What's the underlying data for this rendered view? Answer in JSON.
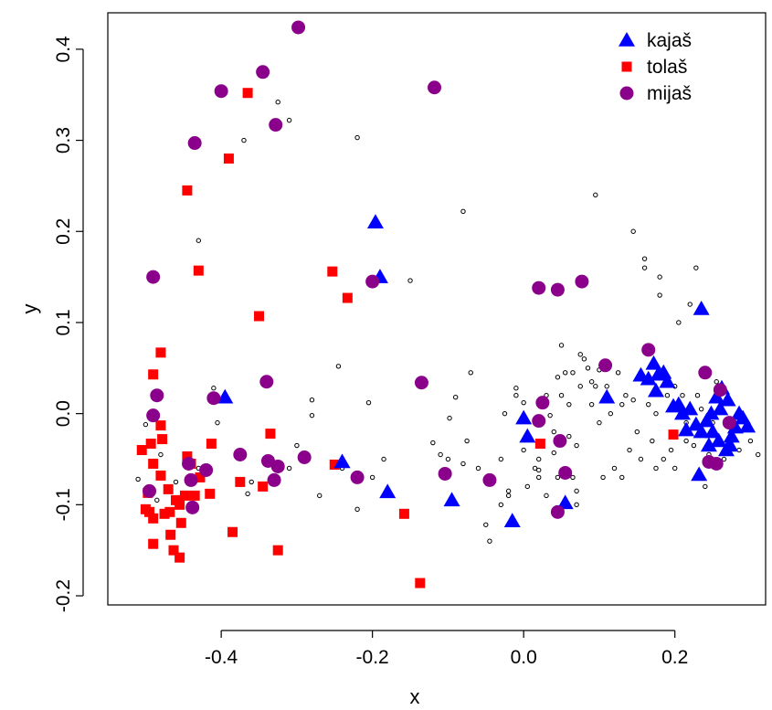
{
  "chart_data": {
    "type": "scatter",
    "xlabel": "x",
    "ylabel": "y",
    "xlim": [
      -0.55,
      0.32
    ],
    "ylim": [
      -0.21,
      0.44
    ],
    "x_ticks": [
      -0.4,
      -0.2,
      0.0,
      0.2
    ],
    "x_tick_labels": [
      "-0.4",
      "-0.2",
      "0.0",
      "0.2"
    ],
    "y_ticks": [
      -0.2,
      -0.1,
      0.0,
      0.1,
      0.2,
      0.3,
      0.4
    ],
    "y_tick_labels": [
      "-0.2",
      "-0.1",
      "0.0",
      "0.1",
      "0.2",
      "0.3",
      "0.4"
    ],
    "grid": false,
    "legend_position": "top-right",
    "legend": [
      {
        "label": "kajaš",
        "marker": "triangle",
        "color": "#0000ff"
      },
      {
        "label": "tolaš",
        "marker": "square",
        "color": "#ff0000"
      },
      {
        "label": "mijaš",
        "marker": "circle-filled",
        "color": "#8b008b"
      }
    ],
    "series": [
      {
        "name": "kajaš",
        "marker": "triangle",
        "color": "#0000ff",
        "points": [
          [
            -0.196,
            0.21
          ],
          [
            -0.19,
            0.15
          ],
          [
            -0.395,
            0.018
          ],
          [
            -0.24,
            -0.053
          ],
          [
            -0.18,
            -0.086
          ],
          [
            -0.095,
            -0.095
          ],
          [
            -0.015,
            -0.118
          ],
          [
            0.0,
            -0.005
          ],
          [
            0.005,
            -0.025
          ],
          [
            0.055,
            -0.098
          ],
          [
            0.11,
            0.018
          ],
          [
            0.235,
            0.115
          ],
          [
            0.155,
            0.042
          ],
          [
            0.165,
            0.038
          ],
          [
            0.172,
            0.055
          ],
          [
            0.178,
            0.043
          ],
          [
            0.185,
            0.045
          ],
          [
            0.19,
            0.035
          ],
          [
            0.175,
            0.025
          ],
          [
            0.198,
            0.008
          ],
          [
            0.21,
            0.0
          ],
          [
            0.22,
            0.005
          ],
          [
            0.228,
            -0.012
          ],
          [
            0.235,
            -0.02
          ],
          [
            0.242,
            -0.008
          ],
          [
            0.25,
            -0.02
          ],
          [
            0.255,
            0.018
          ],
          [
            0.262,
            0.028
          ],
          [
            0.27,
            0.015
          ],
          [
            0.275,
            -0.025
          ],
          [
            0.28,
            -0.015
          ],
          [
            0.285,
            0.0
          ],
          [
            0.29,
            -0.005
          ],
          [
            0.296,
            -0.014
          ],
          [
            0.232,
            -0.067
          ],
          [
            0.245,
            -0.035
          ],
          [
            0.258,
            -0.03
          ],
          [
            0.268,
            -0.04
          ],
          [
            0.273,
            -0.035
          ],
          [
            0.215,
            -0.018
          ],
          [
            0.205,
            0.01
          ],
          [
            0.26,
            0.005
          ],
          [
            0.248,
            0.0
          ]
        ]
      },
      {
        "name": "tolaš",
        "marker": "square",
        "color": "#ff0000",
        "points": [
          [
            -0.365,
            0.352
          ],
          [
            -0.39,
            0.28
          ],
          [
            -0.445,
            0.245
          ],
          [
            -0.43,
            0.157
          ],
          [
            -0.35,
            0.107
          ],
          [
            -0.253,
            0.156
          ],
          [
            -0.233,
            0.127
          ],
          [
            -0.48,
            0.067
          ],
          [
            -0.49,
            0.043
          ],
          [
            -0.48,
            -0.013
          ],
          [
            -0.478,
            -0.028
          ],
          [
            -0.493,
            -0.033
          ],
          [
            -0.505,
            -0.04
          ],
          [
            -0.49,
            -0.055
          ],
          [
            -0.48,
            -0.068
          ],
          [
            -0.47,
            -0.083
          ],
          [
            -0.497,
            -0.087
          ],
          [
            -0.5,
            -0.105
          ],
          [
            -0.495,
            -0.108
          ],
          [
            -0.49,
            -0.115
          ],
          [
            -0.475,
            -0.11
          ],
          [
            -0.468,
            -0.108
          ],
          [
            -0.46,
            -0.095
          ],
          [
            -0.455,
            -0.1
          ],
          [
            -0.448,
            -0.09
          ],
          [
            -0.435,
            -0.09
          ],
          [
            -0.44,
            -0.055
          ],
          [
            -0.445,
            -0.047
          ],
          [
            -0.413,
            -0.033
          ],
          [
            -0.428,
            -0.07
          ],
          [
            -0.415,
            -0.088
          ],
          [
            -0.453,
            -0.12
          ],
          [
            -0.467,
            -0.133
          ],
          [
            -0.463,
            -0.15
          ],
          [
            -0.455,
            -0.158
          ],
          [
            -0.49,
            -0.143
          ],
          [
            -0.385,
            -0.13
          ],
          [
            -0.375,
            -0.075
          ],
          [
            -0.345,
            -0.08
          ],
          [
            -0.335,
            -0.022
          ],
          [
            -0.325,
            -0.15
          ],
          [
            -0.25,
            -0.056
          ],
          [
            -0.158,
            -0.11
          ],
          [
            -0.137,
            -0.186
          ],
          [
            0.022,
            -0.033
          ],
          [
            0.198,
            -0.023
          ]
        ]
      },
      {
        "name": "mijaš",
        "marker": "circle-filled",
        "color": "#8b008b",
        "points": [
          [
            -0.298,
            0.424
          ],
          [
            -0.345,
            0.375
          ],
          [
            -0.4,
            0.354
          ],
          [
            -0.435,
            0.297
          ],
          [
            -0.328,
            0.317
          ],
          [
            -0.118,
            0.358
          ],
          [
            -0.49,
            0.15
          ],
          [
            -0.2,
            0.145
          ],
          [
            -0.485,
            0.02
          ],
          [
            -0.49,
            -0.002
          ],
          [
            -0.41,
            0.017
          ],
          [
            -0.34,
            0.035
          ],
          [
            -0.135,
            0.034
          ],
          [
            -0.443,
            -0.055
          ],
          [
            -0.375,
            -0.045
          ],
          [
            -0.338,
            -0.052
          ],
          [
            -0.325,
            -0.058
          ],
          [
            -0.29,
            -0.048
          ],
          [
            -0.22,
            -0.07
          ],
          [
            -0.42,
            -0.062
          ],
          [
            -0.44,
            -0.073
          ],
          [
            -0.33,
            -0.073
          ],
          [
            -0.495,
            -0.085
          ],
          [
            -0.438,
            -0.103
          ],
          [
            -0.104,
            -0.066
          ],
          [
            -0.045,
            -0.073
          ],
          [
            0.02,
            0.138
          ],
          [
            0.045,
            0.136
          ],
          [
            0.077,
            0.145
          ],
          [
            0.108,
            0.053
          ],
          [
            0.165,
            0.07
          ],
          [
            0.24,
            0.045
          ],
          [
            0.02,
            -0.008
          ],
          [
            0.025,
            0.012
          ],
          [
            0.048,
            -0.03
          ],
          [
            0.055,
            -0.065
          ],
          [
            0.045,
            -0.108
          ],
          [
            0.26,
            0.026
          ],
          [
            0.272,
            -0.01
          ],
          [
            0.245,
            -0.053
          ],
          [
            0.255,
            -0.055
          ]
        ]
      },
      {
        "name": "",
        "marker": "circle-open",
        "color": "#000000",
        "points": [
          [
            -0.31,
            0.322
          ],
          [
            -0.325,
            0.342
          ],
          [
            -0.22,
            0.303
          ],
          [
            -0.37,
            0.3
          ],
          [
            -0.43,
            0.19
          ],
          [
            -0.08,
            0.222
          ],
          [
            -0.15,
            0.146
          ],
          [
            -0.245,
            0.052
          ],
          [
            -0.28,
            0.015
          ],
          [
            -0.28,
            -0.002
          ],
          [
            -0.205,
            0.012
          ],
          [
            -0.41,
            0.028
          ],
          [
            -0.405,
            -0.01
          ],
          [
            -0.48,
            -0.045
          ],
          [
            -0.5,
            -0.012
          ],
          [
            -0.51,
            -0.072
          ],
          [
            -0.485,
            -0.095
          ],
          [
            -0.46,
            -0.075
          ],
          [
            -0.47,
            -0.085
          ],
          [
            -0.43,
            -0.06
          ],
          [
            -0.445,
            -0.088
          ],
          [
            -0.36,
            -0.075
          ],
          [
            -0.365,
            -0.088
          ],
          [
            -0.3,
            -0.035
          ],
          [
            -0.31,
            -0.06
          ],
          [
            -0.24,
            -0.06
          ],
          [
            -0.27,
            -0.09
          ],
          [
            -0.22,
            -0.105
          ],
          [
            -0.2,
            -0.07
          ],
          [
            -0.185,
            -0.05
          ],
          [
            -0.12,
            -0.032
          ],
          [
            -0.11,
            -0.045
          ],
          [
            -0.1,
            -0.05
          ],
          [
            -0.098,
            -0.005
          ],
          [
            -0.09,
            0.018
          ],
          [
            -0.07,
            0.045
          ],
          [
            -0.075,
            -0.03
          ],
          [
            -0.06,
            -0.06
          ],
          [
            -0.08,
            -0.055
          ],
          [
            -0.05,
            -0.122
          ],
          [
            -0.045,
            -0.14
          ],
          [
            -0.03,
            -0.05
          ],
          [
            -0.03,
            -0.1
          ],
          [
            -0.025,
            0.0
          ],
          [
            -0.02,
            -0.09
          ],
          [
            -0.02,
            -0.085
          ],
          [
            -0.01,
            0.02
          ],
          [
            -0.01,
            0.028
          ],
          [
            0.0,
            0.012
          ],
          [
            0.0,
            -0.04
          ],
          [
            0.005,
            -0.08
          ],
          [
            0.015,
            -0.06
          ],
          [
            0.02,
            -0.062
          ],
          [
            0.02,
            -0.05
          ],
          [
            0.02,
            -0.07
          ],
          [
            0.03,
            0.02
          ],
          [
            0.03,
            -0.09
          ],
          [
            0.035,
            -0.002
          ],
          [
            0.04,
            -0.02
          ],
          [
            0.04,
            -0.043
          ],
          [
            0.045,
            0.04
          ],
          [
            0.045,
            -0.07
          ],
          [
            0.05,
            0.075
          ],
          [
            0.05,
            0.02
          ],
          [
            0.055,
            0.045
          ],
          [
            0.06,
            0.01
          ],
          [
            0.06,
            -0.025
          ],
          [
            0.065,
            0.045
          ],
          [
            0.065,
            -0.07
          ],
          [
            0.07,
            -0.035
          ],
          [
            0.07,
            -0.085
          ],
          [
            0.07,
            -0.1
          ],
          [
            0.075,
            0.03
          ],
          [
            0.08,
            0.06
          ],
          [
            0.085,
            0.05
          ],
          [
            0.09,
            0.01
          ],
          [
            0.09,
            0.035
          ],
          [
            0.095,
            0.03
          ],
          [
            0.095,
            0.24
          ],
          [
            0.1,
            0.048
          ],
          [
            0.1,
            -0.01
          ],
          [
            0.105,
            -0.07
          ],
          [
            0.11,
            0.03
          ],
          [
            0.115,
            0.0
          ],
          [
            0.12,
            -0.06
          ],
          [
            0.125,
            0.045
          ],
          [
            0.13,
            0.01
          ],
          [
            0.135,
            0.02
          ],
          [
            0.14,
            -0.04
          ],
          [
            0.145,
            0.015
          ],
          [
            0.145,
            0.2
          ],
          [
            0.15,
            -0.02
          ],
          [
            0.155,
            -0.05
          ],
          [
            0.16,
            0.16
          ],
          [
            0.16,
            0.17
          ],
          [
            0.165,
            0.01
          ],
          [
            0.17,
            -0.03
          ],
          [
            0.175,
            0.0
          ],
          [
            0.18,
            0.13
          ],
          [
            0.18,
            0.15
          ],
          [
            0.185,
            -0.05
          ],
          [
            0.19,
            0.02
          ],
          [
            0.195,
            -0.04
          ],
          [
            0.2,
            0.03
          ],
          [
            0.2,
            -0.06
          ],
          [
            0.205,
            0.1
          ],
          [
            0.21,
            0.02
          ],
          [
            0.215,
            -0.01
          ],
          [
            0.22,
            0.12
          ],
          [
            0.225,
            -0.035
          ],
          [
            0.228,
            0.16
          ],
          [
            0.23,
            0.02
          ],
          [
            0.24,
            -0.08
          ],
          [
            0.245,
            -0.045
          ],
          [
            0.25,
            -0.01
          ],
          [
            0.3,
            -0.03
          ],
          [
            0.31,
            -0.045
          ],
          [
            0.285,
            -0.04
          ],
          [
            0.13,
            -0.07
          ],
          [
            0.075,
            0.065
          ],
          [
            0.175,
            -0.06
          ],
          [
            0.215,
            -0.03
          ],
          [
            0.235,
            0.005
          ],
          [
            0.265,
            -0.05
          ],
          [
            0.255,
            0.035
          ]
        ]
      }
    ]
  }
}
